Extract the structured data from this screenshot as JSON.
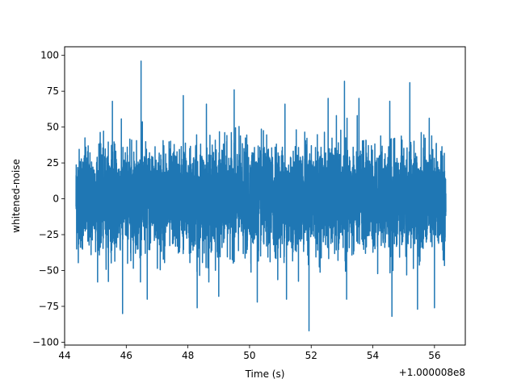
{
  "chart_data": {
    "type": "line",
    "title": "",
    "xlabel": "Time (s)",
    "ylabel": "whitened-noise",
    "x_offset_label": "+1.000008e8",
    "xlim": [
      44.0,
      57.0
    ],
    "ylim": [
      -102,
      106
    ],
    "x_range": [
      44.37,
      56.37
    ],
    "x_ticks": [
      {
        "value": 44,
        "label": "44"
      },
      {
        "value": 46,
        "label": "46"
      },
      {
        "value": 48,
        "label": "48"
      },
      {
        "value": 50,
        "label": "50"
      },
      {
        "value": 52,
        "label": "52"
      },
      {
        "value": 54,
        "label": "54"
      },
      {
        "value": 56,
        "label": "56"
      }
    ],
    "y_ticks": [
      {
        "value": 100,
        "label": "100"
      },
      {
        "value": 75,
        "label": "75"
      },
      {
        "value": 50,
        "label": "50"
      },
      {
        "value": 25,
        "label": "25"
      },
      {
        "value": 0,
        "label": "0"
      },
      {
        "value": -25,
        "label": "−25"
      },
      {
        "value": -50,
        "label": "−50"
      },
      {
        "value": -75,
        "label": "−75"
      },
      {
        "value": -100,
        "label": "−100"
      }
    ],
    "grid": false,
    "series": [
      {
        "color": "#1f77b4",
        "extremes": [
          {
            "x": 46.48,
            "y": 96
          },
          {
            "x": 51.93,
            "y": -92
          },
          {
            "x": 53.08,
            "y": 82
          },
          {
            "x": 55.2,
            "y": 81
          },
          {
            "x": 49.5,
            "y": 76
          },
          {
            "x": 47.85,
            "y": 72
          },
          {
            "x": 52.55,
            "y": 70
          },
          {
            "x": 53.55,
            "y": 70
          },
          {
            "x": 45.55,
            "y": 68
          },
          {
            "x": 54.55,
            "y": 68
          },
          {
            "x": 48.6,
            "y": 66
          },
          {
            "x": 51.15,
            "y": 66
          },
          {
            "x": 45.88,
            "y": -80
          },
          {
            "x": 54.62,
            "y": -82
          },
          {
            "x": 48.3,
            "y": -76
          },
          {
            "x": 55.45,
            "y": -77
          },
          {
            "x": 46.68,
            "y": -70
          },
          {
            "x": 50.25,
            "y": -72
          },
          {
            "x": 53.15,
            "y": -70
          },
          {
            "x": 49.0,
            "y": -68
          },
          {
            "x": 51.2,
            "y": -70
          },
          {
            "x": 56.0,
            "y": -76
          }
        ]
      }
    ]
  }
}
